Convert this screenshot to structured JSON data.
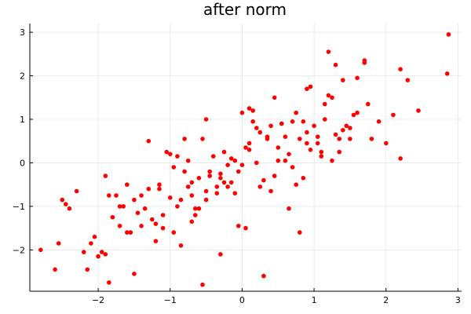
{
  "chart_data": {
    "type": "scatter",
    "title": "after norm",
    "xlabel": "",
    "ylabel": "",
    "xlim": [
      -2.95,
      3.05
    ],
    "ylim": [
      -2.95,
      3.2
    ],
    "xticks": [
      -2,
      -1,
      0,
      1,
      2,
      3
    ],
    "yticks": [
      -2,
      -1,
      0,
      1,
      2,
      3
    ],
    "xtick_labels": [
      "−2",
      "−1",
      "0",
      "1",
      "2",
      "3"
    ],
    "ytick_labels": [
      "−2",
      "−1",
      "0",
      "1",
      "2",
      "3"
    ],
    "grid": true,
    "legend": "none",
    "marker_color": "#ff0000",
    "series": [
      {
        "x": [
          -2.8,
          -2.6,
          -2.55,
          -2.5,
          -2.45,
          -2.4,
          -2.3,
          -2.2,
          -2.15,
          -2.1,
          -2.05,
          -2.0,
          -1.95,
          -1.9,
          -1.85,
          -1.8,
          -1.75,
          -1.7,
          -1.65,
          -1.6,
          -1.55,
          -1.5,
          -1.45,
          -1.4,
          -1.35,
          -1.3,
          -1.25,
          -1.2,
          -1.15,
          -1.1,
          -1.05,
          -1.0,
          -0.95,
          -0.9,
          -0.85,
          -0.8,
          -0.75,
          -0.7,
          -0.65,
          -0.6,
          -0.55,
          -0.5,
          -0.45,
          -0.4,
          -0.35,
          -0.3,
          -0.25,
          -0.2,
          -0.15,
          -0.1,
          -0.05,
          0.0,
          0.05,
          0.1,
          0.15,
          0.2,
          0.25,
          0.3,
          0.35,
          0.4,
          0.45,
          0.5,
          0.55,
          0.6,
          0.65,
          0.7,
          0.75,
          0.8,
          0.85,
          0.9,
          0.95,
          1.0,
          1.05,
          1.1,
          1.15,
          1.2,
          1.25,
          1.3,
          1.35,
          1.4,
          1.5,
          1.6,
          1.7,
          1.8,
          1.9,
          2.0,
          2.1,
          2.2,
          2.3,
          2.45,
          2.85,
          2.87,
          -1.9,
          -1.7,
          -1.4,
          -1.2,
          -0.9,
          -0.7,
          -0.5,
          -0.3,
          -0.1,
          0.1,
          0.3,
          0.5,
          0.7,
          0.9,
          1.1,
          1.3,
          1.5,
          1.7,
          -1.85,
          -1.5,
          -1.1,
          -0.8,
          -0.6,
          -0.2,
          0.2,
          0.6,
          0.9,
          1.2,
          1.6,
          2.2,
          -1.3,
          -0.95,
          -0.55,
          -0.25,
          0.05,
          0.35,
          0.75,
          1.05,
          1.45,
          -1.6,
          -1.0,
          -0.75,
          -0.45,
          -0.15,
          0.15,
          0.45,
          0.85,
          1.15,
          1.35,
          1.75,
          -0.85,
          -0.65,
          -0.35,
          0.25,
          0.55,
          0.95,
          -1.15,
          0.65,
          1.25,
          -0.05,
          -0.3,
          0.4,
          1.4,
          0.0,
          -0.7,
          0.8,
          1.55,
          -0.5,
          0.1
        ],
        "y": [
          -2.0,
          -2.45,
          -1.85,
          -0.85,
          -0.95,
          -1.05,
          -0.65,
          -2.05,
          -2.45,
          -1.85,
          -1.7,
          -2.15,
          -2.05,
          -2.1,
          -2.75,
          -1.25,
          -0.75,
          -1.45,
          -1.0,
          -0.5,
          -1.6,
          -2.55,
          -1.15,
          -0.75,
          -1.05,
          -0.6,
          -1.3,
          -1.4,
          -0.5,
          -1.2,
          0.25,
          -0.8,
          -1.6,
          0.15,
          -0.85,
          -0.2,
          -0.55,
          -0.75,
          -1.2,
          -1.05,
          -2.8,
          -0.65,
          -0.2,
          0.15,
          -0.7,
          -0.35,
          0.25,
          -0.05,
          0.1,
          0.05,
          -0.2,
          -0.05,
          -1.5,
          0.45,
          0.95,
          0.0,
          -0.55,
          -2.6,
          0.6,
          0.85,
          -0.3,
          0.35,
          0.9,
          0.6,
          0.2,
          0.95,
          -0.5,
          0.55,
          0.95,
          0.7,
          0.3,
          0.85,
          0.6,
          0.15,
          1.0,
          2.55,
          1.5,
          2.25,
          0.55,
          0.75,
          0.55,
          1.95,
          2.35,
          0.55,
          0.95,
          0.45,
          1.1,
          0.1,
          1.9,
          1.2,
          2.05,
          2.95,
          -0.3,
          -1.0,
          -1.45,
          -1.8,
          -1.0,
          -0.45,
          -0.85,
          -0.25,
          -0.7,
          0.3,
          -0.4,
          0.05,
          -0.1,
          0.45,
          0.25,
          0.65,
          0.8,
          2.3,
          -0.75,
          -0.85,
          -1.5,
          0.55,
          -0.35,
          -0.55,
          0.8,
          0.05,
          1.7,
          1.55,
          1.15,
          2.15,
          0.5,
          -0.1,
          0.55,
          -0.45,
          0.35,
          0.55,
          1.15,
          0.45,
          0.85,
          -1.6,
          0.2,
          0.05,
          -0.3,
          -0.45,
          1.2,
          1.5,
          -0.35,
          1.35,
          0.25,
          1.35,
          -1.9,
          -1.05,
          -0.55,
          0.7,
          0.9,
          1.75,
          -0.6,
          -1.05,
          0.05,
          -1.45,
          -2.1,
          -0.65,
          1.9,
          1.15,
          -1.35,
          -1.6,
          1.1,
          1.0,
          1.25
        ]
      }
    ]
  }
}
